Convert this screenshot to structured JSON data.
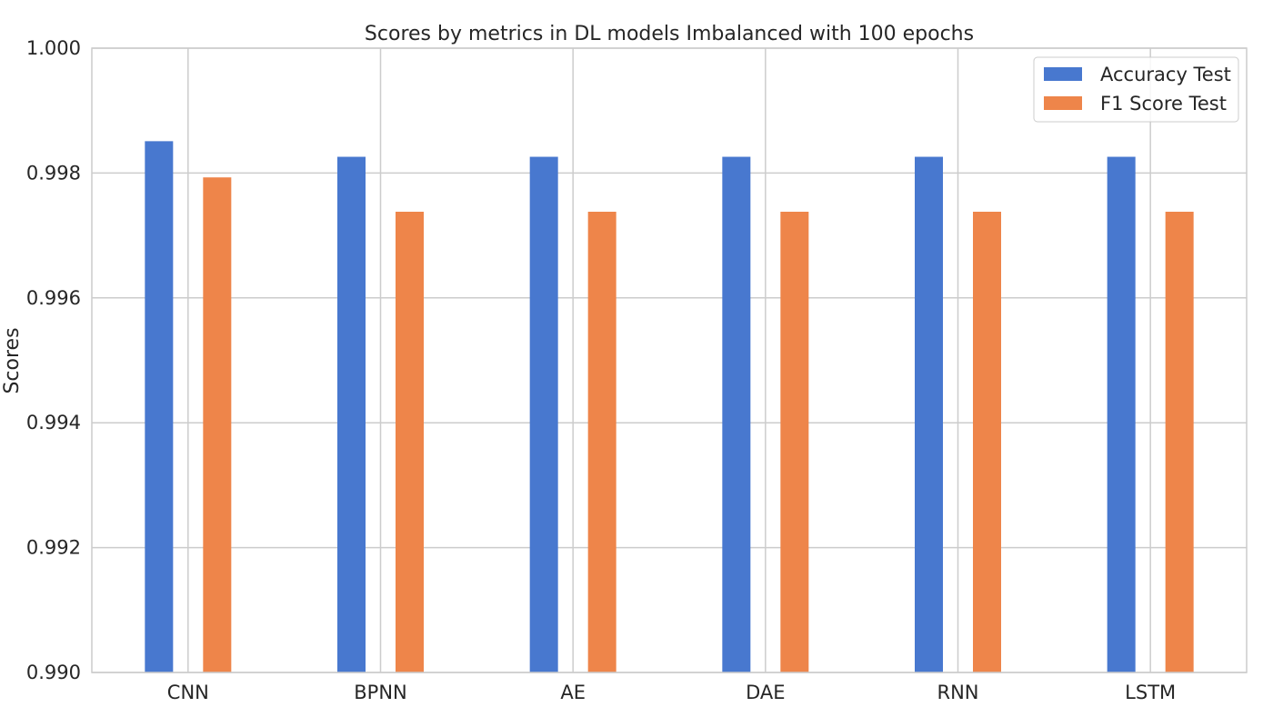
{
  "chart_data": {
    "type": "bar",
    "title": "Scores by metrics in DL models Imbalanced with 100 epochs",
    "xlabel": "",
    "ylabel": "Scores",
    "categories": [
      "CNN",
      "BPNN",
      "AE",
      "DAE",
      "RNN",
      "LSTM"
    ],
    "series": [
      {
        "name": "Accuracy Test",
        "color": "#4878cf",
        "values": [
          0.99851,
          0.99826,
          0.99826,
          0.99826,
          0.99826,
          0.99826
        ]
      },
      {
        "name": "F1 Score Test",
        "color": "#ee854a",
        "values": [
          0.99793,
          0.99738,
          0.99738,
          0.99738,
          0.99738,
          0.99738
        ]
      }
    ],
    "ylim": [
      0.99,
      1.0
    ],
    "yticks": [
      "0.990",
      "0.992",
      "0.994",
      "0.996",
      "0.998",
      "1.000"
    ],
    "yticks_values": [
      0.99,
      0.992,
      0.994,
      0.996,
      0.998,
      1.0
    ],
    "grid": true,
    "legend_position": "top-right"
  }
}
